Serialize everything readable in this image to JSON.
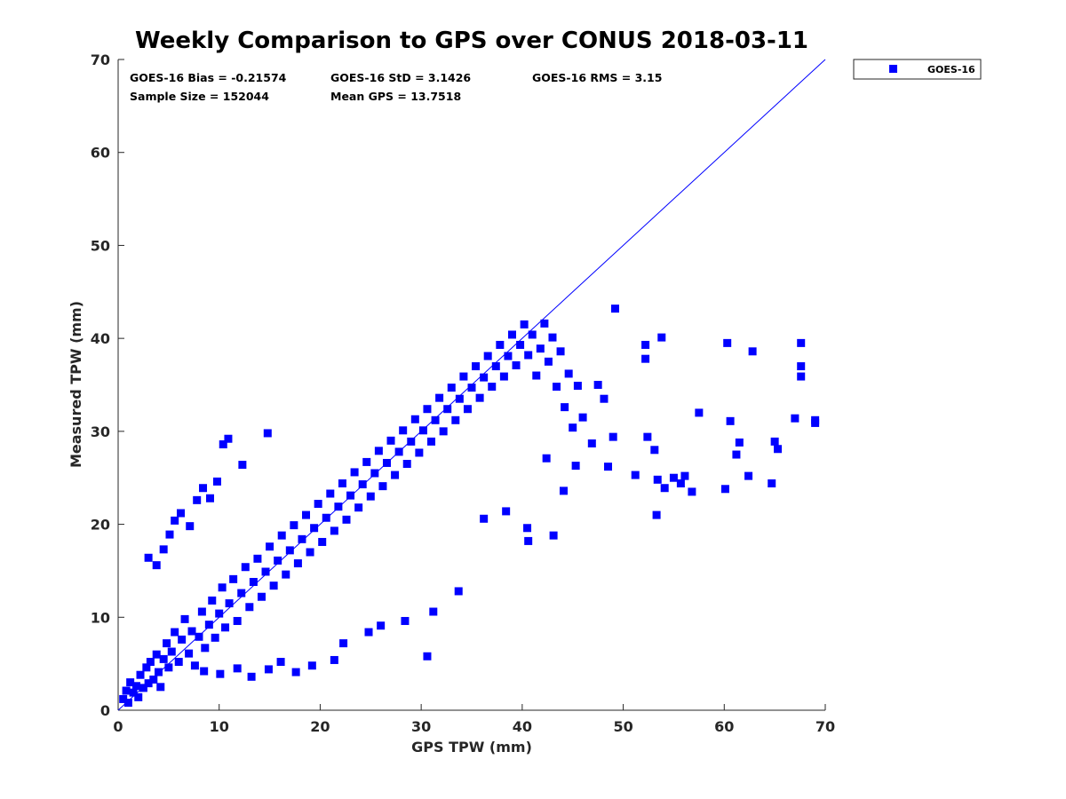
{
  "chart_data": {
    "type": "scatter",
    "title": "Weekly Comparison to GPS over CONUS 2018-03-11",
    "xlabel": "GPS TPW (mm)",
    "ylabel": "Measured TPW (mm)",
    "xlim": [
      0,
      70
    ],
    "ylim": [
      0,
      70
    ],
    "x_ticks": [
      "0",
      "10",
      "20",
      "30",
      "40",
      "50",
      "60",
      "70"
    ],
    "y_ticks": [
      "0",
      "10",
      "20",
      "30",
      "40",
      "50",
      "60",
      "70"
    ],
    "grid": false,
    "legend_position": "outside top-right",
    "series_color": "#0000ff",
    "reference_line": {
      "x": [
        0,
        70
      ],
      "y": [
        0,
        70
      ],
      "label": "1:1"
    },
    "stats": {
      "bias": "GOES-16 Bias = -0.21574",
      "std": "GOES-16 StD = 3.1426",
      "rms": "GOES-16 RMS = 3.15",
      "sample_size": "Sample Size = 152044",
      "mean_gps": "Mean GPS = 13.7518"
    },
    "series": [
      {
        "name": "GOES-16",
        "points": [
          [
            0.5,
            1.2
          ],
          [
            0.8,
            2.1
          ],
          [
            1.0,
            0.8
          ],
          [
            1.2,
            3.0
          ],
          [
            1.5,
            1.9
          ],
          [
            1.8,
            2.6
          ],
          [
            2.0,
            1.4
          ],
          [
            2.2,
            3.8
          ],
          [
            2.5,
            2.4
          ],
          [
            2.8,
            4.6
          ],
          [
            3.0,
            2.9
          ],
          [
            3.2,
            5.2
          ],
          [
            3.5,
            3.3
          ],
          [
            3.8,
            6.0
          ],
          [
            4.0,
            4.1
          ],
          [
            4.2,
            2.5
          ],
          [
            4.5,
            5.5
          ],
          [
            4.8,
            7.2
          ],
          [
            5.0,
            4.6
          ],
          [
            5.3,
            6.3
          ],
          [
            5.6,
            8.4
          ],
          [
            6.0,
            5.2
          ],
          [
            6.3,
            7.6
          ],
          [
            6.6,
            9.8
          ],
          [
            7.0,
            6.1
          ],
          [
            7.3,
            8.5
          ],
          [
            7.6,
            4.8
          ],
          [
            8.0,
            7.9
          ],
          [
            8.3,
            10.6
          ],
          [
            8.6,
            6.7
          ],
          [
            9.0,
            9.2
          ],
          [
            9.3,
            11.8
          ],
          [
            9.6,
            7.8
          ],
          [
            10.0,
            10.4
          ],
          [
            10.3,
            13.2
          ],
          [
            10.6,
            8.9
          ],
          [
            11.0,
            11.5
          ],
          [
            11.4,
            14.1
          ],
          [
            11.8,
            9.6
          ],
          [
            12.2,
            12.6
          ],
          [
            12.6,
            15.4
          ],
          [
            13.0,
            11.1
          ],
          [
            13.4,
            13.8
          ],
          [
            13.8,
            16.3
          ],
          [
            14.2,
            12.2
          ],
          [
            14.6,
            14.9
          ],
          [
            15.0,
            17.6
          ],
          [
            15.4,
            13.4
          ],
          [
            15.8,
            16.1
          ],
          [
            16.2,
            18.8
          ],
          [
            16.6,
            14.6
          ],
          [
            17.0,
            17.2
          ],
          [
            17.4,
            19.9
          ],
          [
            17.8,
            15.8
          ],
          [
            18.2,
            18.4
          ],
          [
            18.6,
            21.0
          ],
          [
            19.0,
            17.0
          ],
          [
            19.4,
            19.6
          ],
          [
            19.8,
            22.2
          ],
          [
            20.2,
            18.1
          ],
          [
            20.6,
            20.7
          ],
          [
            21.0,
            23.3
          ],
          [
            21.4,
            19.3
          ],
          [
            21.8,
            21.9
          ],
          [
            22.2,
            24.4
          ],
          [
            22.6,
            20.5
          ],
          [
            23.0,
            23.1
          ],
          [
            23.4,
            25.6
          ],
          [
            23.8,
            21.8
          ],
          [
            24.2,
            24.3
          ],
          [
            24.6,
            26.7
          ],
          [
            25.0,
            23.0
          ],
          [
            25.4,
            25.5
          ],
          [
            25.8,
            27.9
          ],
          [
            26.2,
            24.1
          ],
          [
            26.6,
            26.6
          ],
          [
            27.0,
            29.0
          ],
          [
            27.4,
            25.3
          ],
          [
            27.8,
            27.8
          ],
          [
            28.2,
            30.1
          ],
          [
            28.6,
            26.5
          ],
          [
            29.0,
            28.9
          ],
          [
            29.4,
            31.3
          ],
          [
            29.8,
            27.7
          ],
          [
            30.2,
            30.1
          ],
          [
            30.6,
            32.4
          ],
          [
            31.0,
            28.9
          ],
          [
            31.4,
            31.2
          ],
          [
            31.8,
            33.6
          ],
          [
            32.2,
            30.0
          ],
          [
            32.6,
            32.4
          ],
          [
            33.0,
            34.7
          ],
          [
            33.4,
            31.2
          ],
          [
            33.8,
            33.5
          ],
          [
            34.2,
            35.9
          ],
          [
            34.6,
            32.4
          ],
          [
            35.0,
            34.7
          ],
          [
            35.4,
            37.0
          ],
          [
            35.8,
            33.6
          ],
          [
            36.2,
            35.8
          ],
          [
            36.6,
            38.1
          ],
          [
            37.0,
            34.8
          ],
          [
            37.4,
            37.0
          ],
          [
            37.8,
            39.3
          ],
          [
            38.2,
            35.9
          ],
          [
            38.6,
            38.1
          ],
          [
            39.0,
            40.4
          ],
          [
            39.4,
            37.1
          ],
          [
            39.8,
            39.3
          ],
          [
            40.2,
            41.5
          ],
          [
            40.6,
            38.2
          ],
          [
            41.0,
            40.4
          ],
          [
            41.4,
            36.0
          ],
          [
            41.8,
            38.9
          ],
          [
            42.2,
            41.6
          ],
          [
            42.6,
            37.5
          ],
          [
            43.0,
            40.1
          ],
          [
            43.4,
            34.8
          ],
          [
            43.8,
            38.6
          ],
          [
            44.2,
            32.6
          ],
          [
            44.6,
            36.2
          ],
          [
            45.0,
            30.4
          ],
          [
            45.5,
            34.9
          ],
          [
            3.0,
            16.4
          ],
          [
            3.8,
            15.6
          ],
          [
            4.5,
            17.3
          ],
          [
            5.1,
            18.9
          ],
          [
            5.6,
            20.4
          ],
          [
            6.2,
            21.2
          ],
          [
            7.1,
            19.8
          ],
          [
            7.8,
            22.6
          ],
          [
            8.4,
            23.9
          ],
          [
            9.1,
            22.8
          ],
          [
            9.8,
            24.6
          ],
          [
            10.4,
            28.6
          ],
          [
            10.9,
            29.2
          ],
          [
            12.3,
            26.4
          ],
          [
            14.8,
            29.8
          ],
          [
            8.5,
            4.2
          ],
          [
            10.1,
            3.9
          ],
          [
            11.8,
            4.5
          ],
          [
            13.2,
            3.6
          ],
          [
            14.9,
            4.4
          ],
          [
            16.1,
            5.2
          ],
          [
            17.6,
            4.1
          ],
          [
            19.2,
            4.8
          ],
          [
            21.4,
            5.4
          ],
          [
            22.3,
            7.2
          ],
          [
            24.8,
            8.4
          ],
          [
            26.0,
            9.1
          ],
          [
            28.4,
            9.6
          ],
          [
            30.6,
            5.8
          ],
          [
            31.2,
            10.6
          ],
          [
            33.7,
            12.8
          ],
          [
            36.2,
            20.6
          ],
          [
            38.4,
            21.4
          ],
          [
            40.5,
            19.6
          ],
          [
            40.6,
            18.2
          ],
          [
            43.1,
            18.8
          ],
          [
            42.4,
            27.1
          ],
          [
            44.1,
            23.6
          ],
          [
            45.3,
            26.3
          ],
          [
            46.9,
            28.7
          ],
          [
            46.0,
            31.5
          ],
          [
            47.5,
            35.0
          ],
          [
            48.1,
            33.5
          ],
          [
            48.5,
            26.2
          ],
          [
            49.0,
            29.4
          ],
          [
            49.2,
            43.2
          ],
          [
            51.2,
            25.3
          ],
          [
            52.2,
            39.3
          ],
          [
            52.2,
            37.8
          ],
          [
            52.4,
            29.4
          ],
          [
            53.1,
            28.0
          ],
          [
            53.3,
            21.0
          ],
          [
            53.4,
            24.8
          ],
          [
            53.8,
            40.1
          ],
          [
            54.1,
            23.9
          ],
          [
            55.0,
            25.0
          ],
          [
            55.7,
            24.4
          ],
          [
            56.1,
            25.2
          ],
          [
            56.8,
            23.5
          ],
          [
            57.5,
            32.0
          ],
          [
            60.1,
            23.8
          ],
          [
            60.3,
            39.5
          ],
          [
            60.6,
            31.1
          ],
          [
            61.2,
            27.5
          ],
          [
            61.5,
            28.8
          ],
          [
            62.4,
            25.2
          ],
          [
            62.8,
            38.6
          ],
          [
            64.7,
            24.4
          ],
          [
            65.0,
            28.9
          ],
          [
            65.3,
            28.1
          ],
          [
            67.0,
            31.4
          ],
          [
            67.6,
            39.5
          ],
          [
            67.6,
            37.0
          ],
          [
            67.6,
            35.9
          ],
          [
            69.0,
            31.2
          ],
          [
            69.0,
            30.9
          ]
        ]
      }
    ]
  }
}
